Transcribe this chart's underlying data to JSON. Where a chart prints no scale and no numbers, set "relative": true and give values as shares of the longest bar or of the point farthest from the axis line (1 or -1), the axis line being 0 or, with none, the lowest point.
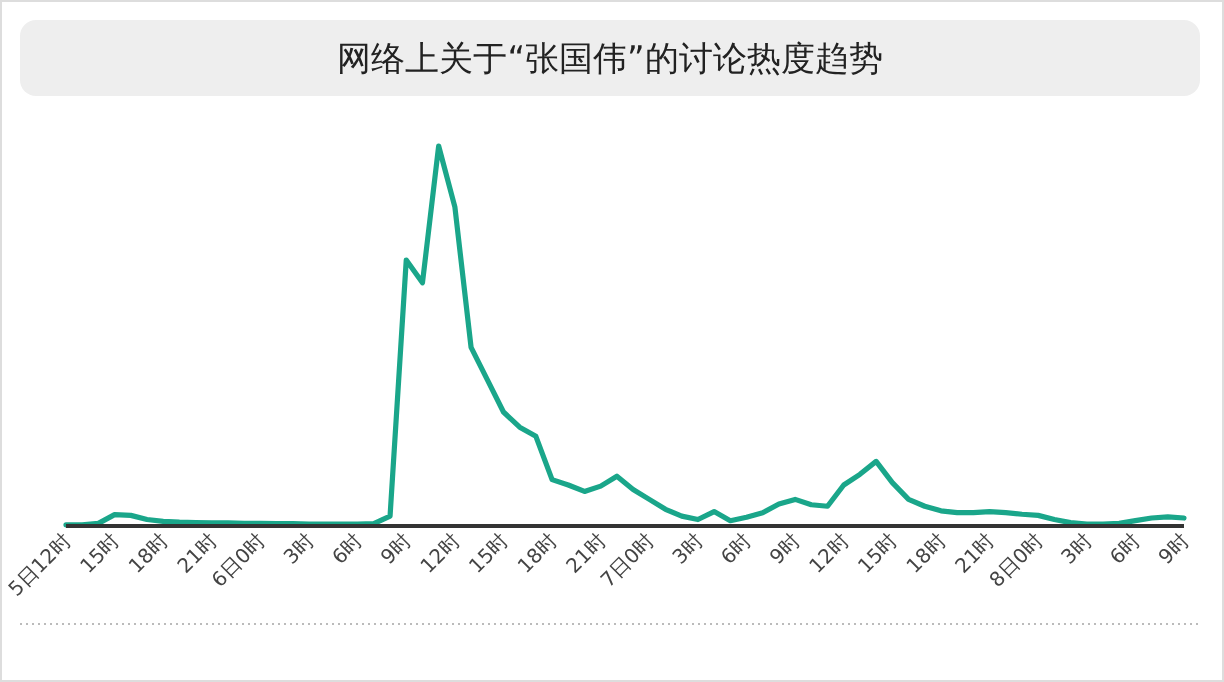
{
  "chart_data": {
    "type": "line",
    "title": "网络上关于“张国伟”的讨论热度趋势",
    "relative": true,
    "color": "#1aa68a",
    "grid": false,
    "marker": "none",
    "line_style": "solid",
    "categories": [
      "5日12时",
      null,
      null,
      "15时",
      null,
      null,
      "18时",
      null,
      null,
      "21时",
      null,
      null,
      "6日0时",
      null,
      null,
      "3时",
      null,
      null,
      "6时",
      null,
      null,
      "9时",
      null,
      null,
      "12时",
      null,
      null,
      "15时",
      null,
      null,
      "18时",
      null,
      null,
      "21时",
      null,
      null,
      "7日0时",
      null,
      null,
      "3时",
      null,
      null,
      "6时",
      null,
      null,
      "9时",
      null,
      null,
      "12时",
      null,
      null,
      "15时",
      null,
      null,
      "18时",
      null,
      null,
      "21时",
      null,
      null,
      "8日0时",
      null,
      null,
      "3时",
      null,
      null,
      "6时",
      null,
      null,
      "9时"
    ],
    "values": [
      0.003,
      0.003,
      0.007,
      0.03,
      0.028,
      0.017,
      0.012,
      0.01,
      0.009,
      0.008,
      0.008,
      0.007,
      0.007,
      0.006,
      0.006,
      0.005,
      0.005,
      0.005,
      0.005,
      0.006,
      0.026,
      0.7,
      0.64,
      1.0,
      0.84,
      0.47,
      0.385,
      0.3,
      0.26,
      0.236,
      0.122,
      0.108,
      0.091,
      0.105,
      0.131,
      0.096,
      0.07,
      0.044,
      0.026,
      0.017,
      0.038,
      0.014,
      0.023,
      0.035,
      0.058,
      0.07,
      0.056,
      0.052,
      0.108,
      0.136,
      0.17,
      0.114,
      0.07,
      0.052,
      0.04,
      0.035,
      0.035,
      0.038,
      0.035,
      0.031,
      0.028,
      0.017,
      0.009,
      0.005,
      0.005,
      0.007,
      0.014,
      0.021,
      0.024,
      0.021
    ]
  }
}
